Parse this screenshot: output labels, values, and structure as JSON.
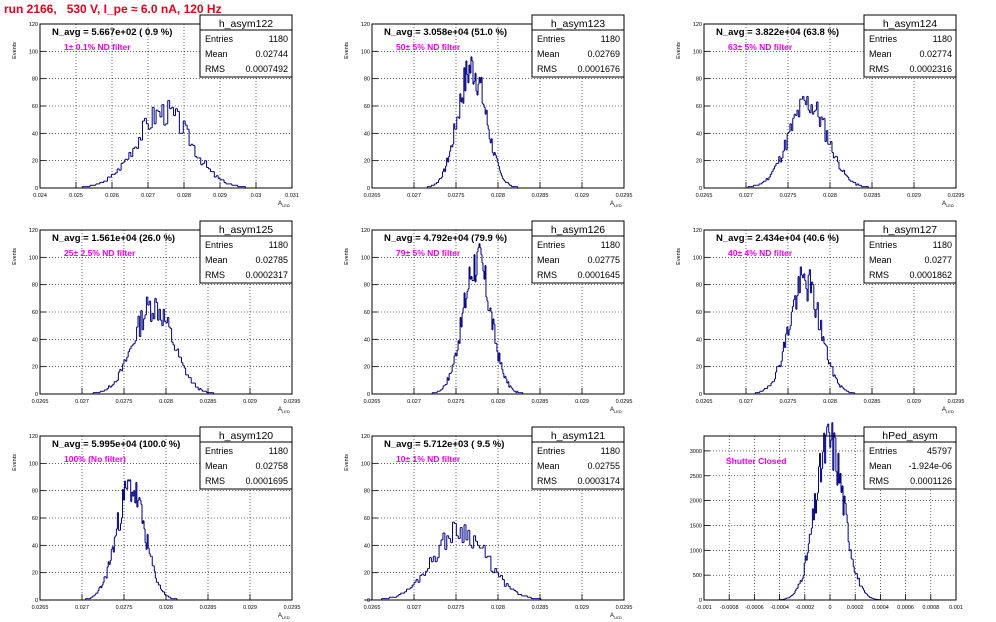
{
  "title": "run 2166,   530 V, I_pe ≈ 6.0 nA, 120 Hz",
  "colors": {
    "title": "#e8001c",
    "annotation": "#ee00ee",
    "hist_line": "#000080",
    "frame": "#000000",
    "grid": "#000000"
  },
  "chart_data": [
    {
      "type": "histogram",
      "hist_name": "h_asym122",
      "stats": {
        "Entries": "1180",
        "Mean": "0.02744",
        "RMS": "0.0007492"
      },
      "heading": "N_avg = 5.667e+02 ( 0.9 %)",
      "annotation": "1± 0.1% ND filter",
      "ylabel": "Events",
      "xlabel": "A_LED",
      "xlim": [
        0.024,
        0.031
      ],
      "ylim": [
        0,
        120
      ],
      "xticks": [
        "0.024",
        "0.025",
        "0.026",
        "0.027",
        "0.028",
        "0.029",
        "0.03",
        "0.031"
      ],
      "yticks": [
        "0",
        "20",
        "40",
        "60",
        "80",
        "100",
        "120"
      ],
      "hist": {
        "mean": 0.02744,
        "rms": 0.0007492,
        "peak": 56,
        "nbins": 100,
        "seed": 3
      }
    },
    {
      "type": "histogram",
      "hist_name": "h_asym123",
      "stats": {
        "Entries": "1180",
        "Mean": "0.02769",
        "RMS": "0.0001676"
      },
      "heading": "N_avg = 3.058e+04 (51.0 %)",
      "annotation": "50± 5% ND filter",
      "ylabel": "Events",
      "xlabel": "A_LED",
      "xlim": [
        0.0265,
        0.0295
      ],
      "ylim": [
        0,
        120
      ],
      "xticks": [
        "0.0265",
        "0.027",
        "0.0275",
        "0.028",
        "0.0285",
        "0.029",
        "0.0295"
      ],
      "yticks": [
        "0",
        "20",
        "40",
        "60",
        "80",
        "100",
        "120"
      ],
      "hist": {
        "mean": 0.02769,
        "rms": 0.0001676,
        "peak": 88,
        "nbins": 100,
        "seed": 7
      }
    },
    {
      "type": "histogram",
      "hist_name": "h_asym124",
      "stats": {
        "Entries": "1180",
        "Mean": "0.02774",
        "RMS": "0.0002316"
      },
      "heading": "N_avg = 3.822e+04 (63.8 %)",
      "annotation": "63± 5% ND filter",
      "ylabel": "Events",
      "xlabel": "A_LED",
      "xlim": [
        0.0265,
        0.0295
      ],
      "ylim": [
        0,
        120
      ],
      "xticks": [
        "0.0265",
        "0.027",
        "0.0275",
        "0.028",
        "0.0285",
        "0.029",
        "0.0295"
      ],
      "yticks": [
        "0",
        "20",
        "40",
        "60",
        "80",
        "100",
        "120"
      ],
      "hist": {
        "mean": 0.02774,
        "rms": 0.0002316,
        "peak": 62,
        "nbins": 100,
        "seed": 11
      }
    },
    {
      "type": "histogram",
      "hist_name": "h_asym125",
      "stats": {
        "Entries": "1180",
        "Mean": "0.02785",
        "RMS": "0.0002317"
      },
      "heading": "N_avg = 1.561e+04 (26.0 %)",
      "annotation": "25± 2.5% ND filter",
      "ylabel": "Events",
      "xlabel": "A_LED",
      "xlim": [
        0.0265,
        0.0295
      ],
      "ylim": [
        0,
        120
      ],
      "xticks": [
        "0.0265",
        "0.027",
        "0.0275",
        "0.028",
        "0.0285",
        "0.029",
        "0.0295"
      ],
      "yticks": [
        "0",
        "20",
        "40",
        "60",
        "80",
        "100",
        "120"
      ],
      "hist": {
        "mean": 0.02785,
        "rms": 0.0002317,
        "peak": 65,
        "nbins": 100,
        "seed": 13
      }
    },
    {
      "type": "histogram",
      "hist_name": "h_asym126",
      "stats": {
        "Entries": "1180",
        "Mean": "0.02775",
        "RMS": "0.0001645"
      },
      "heading": "N_avg = 4.792e+04 (79.9 %)",
      "annotation": "79± 5% ND filter",
      "ylabel": "Events",
      "xlabel": "A_LED",
      "xlim": [
        0.0265,
        0.0295
      ],
      "ylim": [
        0,
        120
      ],
      "xticks": [
        "0.0265",
        "0.027",
        "0.0275",
        "0.028",
        "0.0285",
        "0.029",
        "0.0295"
      ],
      "yticks": [
        "0",
        "20",
        "40",
        "60",
        "80",
        "100",
        "120"
      ],
      "hist": {
        "mean": 0.02775,
        "rms": 0.0001645,
        "peak": 97,
        "nbins": 100,
        "seed": 17
      }
    },
    {
      "type": "histogram",
      "hist_name": "h_asym127",
      "stats": {
        "Entries": "1180",
        "Mean": "0.0277",
        "RMS": "0.0001862"
      },
      "heading": "N_avg = 2.434e+04 (40.6 %)",
      "annotation": "40± 4% ND filter",
      "ylabel": "Events",
      "xlabel": "A_LED",
      "xlim": [
        0.0265,
        0.0295
      ],
      "ylim": [
        0,
        120
      ],
      "xticks": [
        "0.0265",
        "0.027",
        "0.0275",
        "0.028",
        "0.0285",
        "0.029",
        "0.0295"
      ],
      "yticks": [
        "0",
        "20",
        "40",
        "60",
        "80",
        "100",
        "120"
      ],
      "hist": {
        "mean": 0.0277,
        "rms": 0.0001862,
        "peak": 82,
        "nbins": 100,
        "seed": 19
      }
    },
    {
      "type": "histogram",
      "hist_name": "h_asym120",
      "stats": {
        "Entries": "1180",
        "Mean": "0.02758",
        "RMS": "0.0001695"
      },
      "heading": "N_avg = 5.995e+04 (100.0 %)",
      "annotation": "100% (No filter)",
      "ylabel": "Events",
      "xlabel": "A_LED",
      "xlim": [
        0.0265,
        0.0295
      ],
      "ylim": [
        0,
        120
      ],
      "xticks": [
        "0.0265",
        "0.027",
        "0.0275",
        "0.028",
        "0.0285",
        "0.029",
        "0.0295"
      ],
      "yticks": [
        "0",
        "20",
        "40",
        "60",
        "80",
        "100",
        "120"
      ],
      "hist": {
        "mean": 0.02758,
        "rms": 0.0001695,
        "peak": 82,
        "nbins": 100,
        "seed": 23
      }
    },
    {
      "type": "histogram",
      "hist_name": "h_asym121",
      "stats": {
        "Entries": "1180",
        "Mean": "0.02755",
        "RMS": "0.0003174"
      },
      "heading": "N_avg = 5.712e+03 ( 9.5 %)",
      "annotation": "10± 1% ND filter",
      "ylabel": "Events",
      "xlabel": "A_LED",
      "xlim": [
        0.0265,
        0.0295
      ],
      "ylim": [
        0,
        120
      ],
      "xticks": [
        "0.0265",
        "0.027",
        "0.0275",
        "0.028",
        "0.0285",
        "0.029",
        "0.0295"
      ],
      "yticks": [
        "0",
        "20",
        "40",
        "60",
        "80",
        "100",
        "120"
      ],
      "hist": {
        "mean": 0.02755,
        "rms": 0.0003174,
        "peak": 51,
        "nbins": 100,
        "seed": 29
      }
    },
    {
      "type": "histogram",
      "hist_name": "hPed_asym",
      "stats": {
        "Entries": "45797",
        "Mean": "-1.924e-06",
        "RMS": "0.0001126"
      },
      "heading": "",
      "annotation": "Shutter Closed",
      "ylabel": "",
      "xlabel": "",
      "xlim": [
        -0.001,
        0.001
      ],
      "ylim": [
        0,
        3300
      ],
      "xticks": [
        "-0.001",
        "-0.0008",
        "-0.0006",
        "-0.0004",
        "-0.0002",
        "0",
        "0.0002",
        "0.0004",
        "0.0006",
        "0.0008",
        "0.001"
      ],
      "yticks": [
        "0",
        "500",
        "1000",
        "1500",
        "2000",
        "2500",
        "3000"
      ],
      "hist": {
        "mean": -1.924e-06,
        "rms": 0.0001126,
        "peak": 3180,
        "nbins": 100,
        "seed": 31
      }
    }
  ]
}
